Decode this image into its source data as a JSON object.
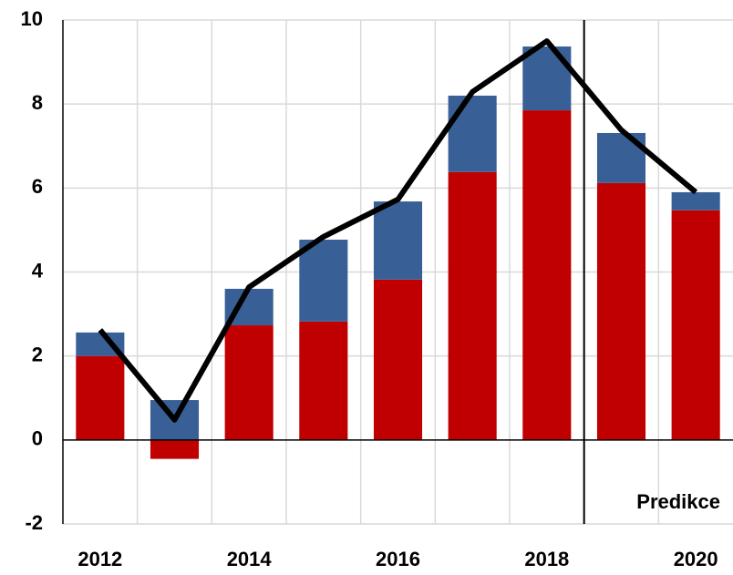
{
  "chart_data": {
    "type": "stacked-bar-line",
    "categories": [
      "2012",
      null,
      "2014",
      null,
      "2016",
      null,
      "2018",
      null,
      "2020"
    ],
    "series": [
      {
        "type": "bar",
        "color": "#c00000",
        "values": [
          2.0,
          -0.45,
          2.73,
          2.82,
          3.82,
          6.38,
          7.85,
          6.12,
          5.47
        ]
      },
      {
        "type": "bar",
        "color": "#386096",
        "values": [
          0.56,
          0.95,
          0.87,
          1.95,
          1.86,
          1.82,
          1.52,
          1.19,
          0.43
        ]
      },
      {
        "type": "line",
        "color": "#000000",
        "values": [
          2.62,
          0.48,
          3.64,
          4.84,
          5.73,
          8.29,
          9.5,
          7.38,
          5.9
        ]
      }
    ],
    "annotations": [
      {
        "text": "Predikce"
      }
    ],
    "ylim": [
      -2,
      10
    ],
    "yticks": [
      -2,
      0,
      2,
      4,
      6,
      8,
      10
    ],
    "grid": true
  }
}
